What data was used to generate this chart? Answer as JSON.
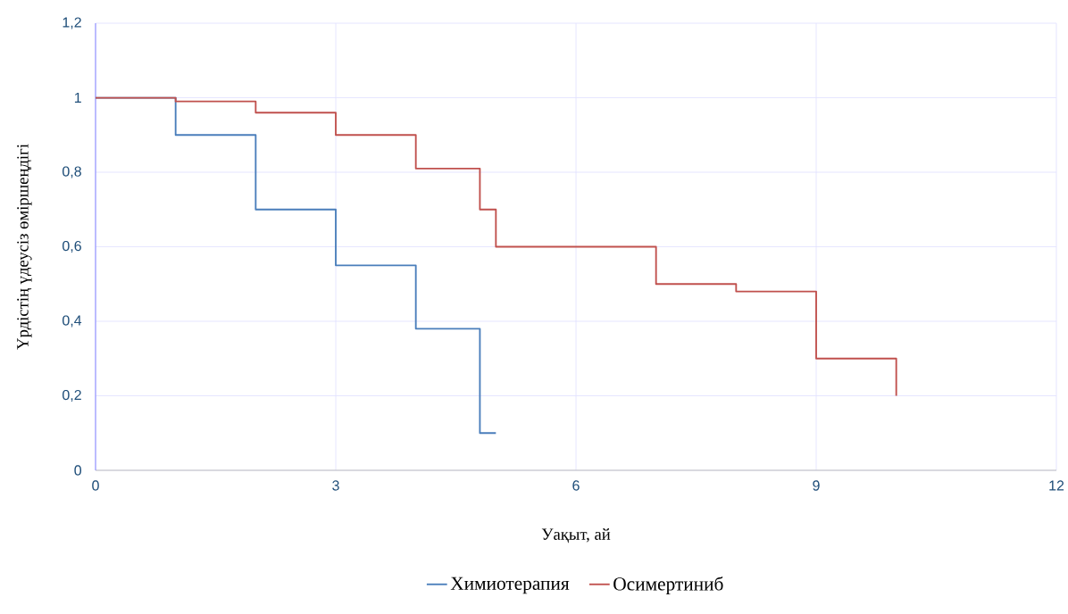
{
  "chart_data": {
    "type": "step",
    "xlabel": "Уақыт, ай",
    "ylabel": "Үрдістің үдеусіз өміршеңдігі",
    "xlim": [
      0,
      12
    ],
    "ylim": [
      0,
      1.2
    ],
    "xticks": [
      0,
      3,
      6,
      9,
      12
    ],
    "yticks": [
      0,
      {
        "value": 0.2,
        "label": "0,2"
      },
      {
        "value": 0.4,
        "label": "0,4"
      },
      {
        "value": 0.6,
        "label": "0,6"
      },
      {
        "value": 0.8,
        "label": "0,8"
      },
      1,
      {
        "value": 1.2,
        "label": "1,2"
      }
    ],
    "grid": true,
    "legend": "bottom",
    "series": [
      {
        "name": "Химиотерапия",
        "color": "#4a7ebb",
        "x": [
          0,
          1,
          2,
          3,
          4,
          4.8,
          5
        ],
        "values": [
          1,
          0.9,
          0.7,
          0.55,
          0.38,
          0.1,
          0.1
        ]
      },
      {
        "name": "Осимертиниб",
        "color": "#c0504d",
        "x": [
          0,
          1,
          2,
          3,
          4,
          4.8,
          5,
          7,
          8,
          9,
          10
        ],
        "values": [
          1,
          0.99,
          0.96,
          0.9,
          0.81,
          0.7,
          0.6,
          0.5,
          0.48,
          0.3,
          0.2
        ]
      }
    ]
  }
}
